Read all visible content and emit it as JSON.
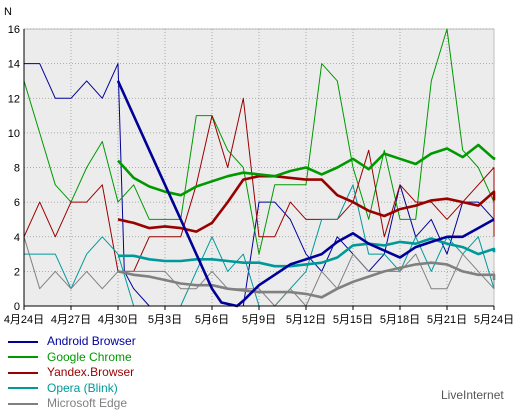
{
  "chart_data": {
    "type": "line",
    "ylabel": "N",
    "ylim": [
      0,
      16
    ],
    "yticks": [
      0,
      2,
      4,
      6,
      8,
      10,
      12,
      14,
      16
    ],
    "x_tick_labels": [
      "4月24日",
      "4月27日",
      "4月30日",
      "5月3日",
      "5月6日",
      "5月9日",
      "5月12日",
      "5月15日",
      "5月18日",
      "5月21日",
      "5月24日"
    ],
    "x_range": [
      0,
      30
    ],
    "x_tick_values": [
      0,
      3,
      6,
      9,
      12,
      15,
      18,
      21,
      24,
      27,
      30
    ],
    "grid": true,
    "legend_position": "bottom-left",
    "series": [
      {
        "name": "Android Browser",
        "color": "#000099",
        "thin": [
          [
            0,
            14
          ],
          [
            1,
            14
          ],
          [
            2,
            12
          ],
          [
            3,
            12
          ],
          [
            4,
            13
          ],
          [
            5,
            12
          ],
          [
            6,
            14
          ],
          [
            6.4,
            2
          ],
          [
            7,
            1
          ],
          [
            8,
            0
          ],
          [
            9,
            0
          ],
          [
            10,
            0
          ],
          [
            11,
            0
          ],
          [
            12,
            0
          ],
          [
            13,
            0
          ],
          [
            14,
            0
          ],
          [
            15,
            6
          ],
          [
            16,
            6
          ],
          [
            17,
            5
          ],
          [
            18,
            3
          ],
          [
            19,
            2
          ],
          [
            20,
            4
          ],
          [
            21,
            3
          ],
          [
            22,
            2
          ],
          [
            23,
            3
          ],
          [
            24,
            7
          ],
          [
            25,
            4
          ],
          [
            26,
            5
          ],
          [
            27,
            3
          ],
          [
            28,
            6
          ],
          [
            29,
            6
          ],
          [
            30,
            5
          ]
        ],
        "thick": [
          [
            6,
            13
          ],
          [
            7,
            11
          ],
          [
            8,
            9
          ],
          [
            9,
            7
          ],
          [
            10,
            5
          ],
          [
            11,
            3
          ],
          [
            12,
            1
          ],
          [
            12.6,
            0.2
          ],
          [
            13.6,
            0
          ],
          [
            14,
            0.3
          ],
          [
            15,
            1.2
          ],
          [
            16,
            1.8
          ],
          [
            17,
            2.4
          ],
          [
            18,
            2.7
          ],
          [
            19,
            3
          ],
          [
            20,
            3.7
          ],
          [
            21,
            4.2
          ],
          [
            22,
            3.6
          ],
          [
            23,
            3.2
          ],
          [
            24,
            2.8
          ],
          [
            25,
            3.4
          ],
          [
            26,
            3.7
          ],
          [
            27,
            4
          ],
          [
            28,
            4
          ],
          [
            29,
            4.5
          ],
          [
            30,
            5
          ]
        ]
      },
      {
        "name": "Google Chrome",
        "color": "#009900",
        "thin": [
          [
            0,
            13
          ],
          [
            1,
            10
          ],
          [
            2,
            7
          ],
          [
            3,
            6
          ],
          [
            4,
            8
          ],
          [
            5,
            9.5
          ],
          [
            6,
            6
          ],
          [
            7,
            7
          ],
          [
            8,
            5
          ],
          [
            9,
            5
          ],
          [
            10,
            5
          ],
          [
            11,
            11
          ],
          [
            12,
            11
          ],
          [
            13,
            9
          ],
          [
            14,
            8
          ],
          [
            15,
            3
          ],
          [
            16,
            7
          ],
          [
            17,
            7
          ],
          [
            18,
            7
          ],
          [
            19,
            14
          ],
          [
            20,
            13
          ],
          [
            21,
            8
          ],
          [
            22,
            5
          ],
          [
            23,
            9
          ],
          [
            24,
            5
          ],
          [
            25,
            5
          ],
          [
            26,
            13
          ],
          [
            27,
            16
          ],
          [
            28,
            9
          ],
          [
            29,
            8
          ],
          [
            30,
            6
          ]
        ],
        "thick": [
          [
            6,
            8.4
          ],
          [
            7,
            7.4
          ],
          [
            8,
            6.9
          ],
          [
            9,
            6.6
          ],
          [
            10,
            6.4
          ],
          [
            11,
            6.9
          ],
          [
            12,
            7.2
          ],
          [
            13,
            7.5
          ],
          [
            14,
            7.7
          ],
          [
            15,
            7.6
          ],
          [
            16,
            7.5
          ],
          [
            17,
            7.8
          ],
          [
            18,
            8
          ],
          [
            19,
            7.6
          ],
          [
            20,
            8
          ],
          [
            21,
            8.5
          ],
          [
            22,
            7.9
          ],
          [
            23,
            8.8
          ],
          [
            24,
            8.5
          ],
          [
            25,
            8.2
          ],
          [
            26,
            8.8
          ],
          [
            27,
            9.1
          ],
          [
            28,
            8.6
          ],
          [
            29,
            9.3
          ],
          [
            30,
            8.5
          ],
          [
            31,
            8.6
          ]
        ]
      },
      {
        "name": "Yandex.Browser",
        "color": "#990000",
        "thin": [
          [
            0,
            4
          ],
          [
            1,
            6
          ],
          [
            2,
            4
          ],
          [
            3,
            6
          ],
          [
            4,
            6
          ],
          [
            5,
            7
          ],
          [
            6,
            2
          ],
          [
            7,
            2
          ],
          [
            8,
            4
          ],
          [
            9,
            4
          ],
          [
            10,
            4
          ],
          [
            11,
            7
          ],
          [
            12,
            11
          ],
          [
            13,
            8
          ],
          [
            14,
            12
          ],
          [
            15,
            4
          ],
          [
            16,
            4
          ],
          [
            17,
            6
          ],
          [
            18,
            5
          ],
          [
            19,
            5
          ],
          [
            20,
            5
          ],
          [
            21,
            6
          ],
          [
            22,
            9
          ],
          [
            23,
            4
          ],
          [
            24,
            7
          ],
          [
            25,
            6
          ],
          [
            26,
            6
          ],
          [
            27,
            5
          ],
          [
            28,
            6
          ],
          [
            29,
            7
          ],
          [
            30,
            8
          ],
          [
            31,
            4
          ]
        ],
        "thick": [
          [
            6,
            5
          ],
          [
            7,
            4.8
          ],
          [
            8,
            4.5
          ],
          [
            9,
            4.6
          ],
          [
            10,
            4.5
          ],
          [
            11,
            4.3
          ],
          [
            12,
            4.8
          ],
          [
            13,
            6
          ],
          [
            14,
            7.3
          ],
          [
            15,
            7.5
          ],
          [
            16,
            7.5
          ],
          [
            17,
            7.4
          ],
          [
            18,
            7.3
          ],
          [
            19,
            7.3
          ],
          [
            20,
            6.4
          ],
          [
            21,
            6
          ],
          [
            22,
            5.5
          ],
          [
            23,
            5.2
          ],
          [
            24,
            5.6
          ],
          [
            25,
            5.8
          ],
          [
            26,
            6.1
          ],
          [
            27,
            6.2
          ],
          [
            28,
            6
          ],
          [
            29,
            5.8
          ],
          [
            30,
            6.6
          ],
          [
            31,
            6.1
          ]
        ]
      },
      {
        "name": "Opera (Blink)",
        "color": "#009999",
        "thin": [
          [
            0,
            3
          ],
          [
            1,
            3
          ],
          [
            2,
            3
          ],
          [
            3,
            1
          ],
          [
            4,
            3
          ],
          [
            5,
            4
          ],
          [
            6,
            3
          ],
          [
            7,
            0
          ],
          [
            8,
            0
          ],
          [
            9,
            0
          ],
          [
            10,
            0
          ],
          [
            11,
            2
          ],
          [
            12,
            4
          ],
          [
            13,
            2
          ],
          [
            14,
            3
          ],
          [
            15,
            0
          ],
          [
            16,
            0
          ],
          [
            17,
            1
          ],
          [
            18,
            2
          ],
          [
            19,
            5
          ],
          [
            20,
            5
          ],
          [
            21,
            7
          ],
          [
            22,
            3
          ],
          [
            23,
            3
          ],
          [
            24,
            2
          ],
          [
            25,
            4
          ],
          [
            26,
            2
          ],
          [
            27,
            4
          ],
          [
            28,
            3
          ],
          [
            29,
            4
          ],
          [
            30,
            1
          ],
          [
            31,
            1
          ]
        ],
        "thick": [
          [
            6,
            2.9
          ],
          [
            7,
            2.9
          ],
          [
            8,
            2.7
          ],
          [
            9,
            2.6
          ],
          [
            10,
            2.6
          ],
          [
            11,
            2.7
          ],
          [
            12,
            2.7
          ],
          [
            13,
            2.6
          ],
          [
            14,
            2.5
          ],
          [
            15,
            2.5
          ],
          [
            16,
            2.3
          ],
          [
            17,
            2.3
          ],
          [
            18,
            2.4
          ],
          [
            19,
            2.5
          ],
          [
            20,
            2.8
          ],
          [
            21,
            3.5
          ],
          [
            22,
            3.6
          ],
          [
            23,
            3.5
          ],
          [
            24,
            3.7
          ],
          [
            25,
            3.6
          ],
          [
            26,
            3.9
          ],
          [
            27,
            3.6
          ],
          [
            28,
            3.4
          ],
          [
            29,
            3
          ],
          [
            30,
            3.3
          ],
          [
            31,
            3.1
          ]
        ]
      },
      {
        "name": "Microsoft Edge",
        "color": "#808080",
        "thin": [
          [
            0,
            4
          ],
          [
            1,
            1
          ],
          [
            2,
            2
          ],
          [
            3,
            1
          ],
          [
            4,
            2
          ],
          [
            5,
            1
          ],
          [
            6,
            2
          ],
          [
            7,
            2
          ],
          [
            8,
            2
          ],
          [
            9,
            2
          ],
          [
            10,
            1
          ],
          [
            11,
            1
          ],
          [
            12,
            2
          ],
          [
            13,
            1
          ],
          [
            14,
            1
          ],
          [
            15,
            1
          ],
          [
            16,
            0
          ],
          [
            17,
            1
          ],
          [
            18,
            0
          ],
          [
            19,
            2
          ],
          [
            20,
            1
          ],
          [
            21,
            3
          ],
          [
            22,
            2
          ],
          [
            23,
            2
          ],
          [
            24,
            2
          ],
          [
            25,
            3
          ],
          [
            26,
            1
          ],
          [
            27,
            1
          ],
          [
            28,
            3
          ],
          [
            29,
            2
          ],
          [
            30,
            1
          ],
          [
            31,
            2
          ]
        ],
        "thick": [
          [
            6,
            2
          ],
          [
            7,
            1.8
          ],
          [
            8,
            1.7
          ],
          [
            9,
            1.5
          ],
          [
            10,
            1.3
          ],
          [
            11,
            1.2
          ],
          [
            12,
            1.2
          ],
          [
            13,
            1
          ],
          [
            14,
            0.9
          ],
          [
            15,
            0.8
          ],
          [
            16,
            0.8
          ],
          [
            17,
            0.8
          ],
          [
            18,
            0.7
          ],
          [
            19,
            0.5
          ],
          [
            20,
            1
          ],
          [
            21,
            1.4
          ],
          [
            22,
            1.7
          ],
          [
            23,
            2
          ],
          [
            24,
            2.2
          ],
          [
            25,
            2.4
          ],
          [
            26,
            2.5
          ],
          [
            27,
            2.4
          ],
          [
            28,
            2
          ],
          [
            29,
            1.8
          ],
          [
            30,
            1.8
          ],
          [
            31,
            1.5
          ]
        ]
      }
    ]
  },
  "brand": "LiveInternet"
}
